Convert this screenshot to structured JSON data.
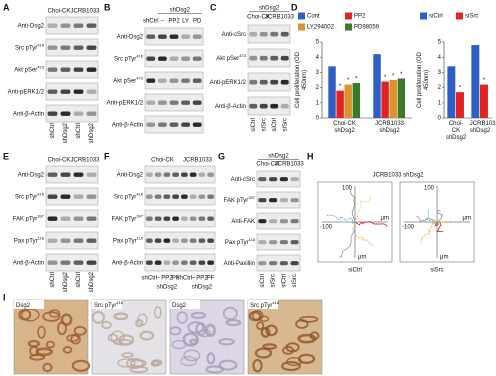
{
  "blots": [
    {
      "letter": "A",
      "header": [
        "Choi-CK",
        "JCRB1033"
      ],
      "rows": [
        {
          "label": "Anti-Dsg2"
        },
        {
          "label": "Src pTyr",
          "sup": "416"
        },
        {
          "label": "Akt pSer",
          "sup": "473"
        },
        {
          "label": "Anti-pERK1/2"
        },
        {
          "label": "Anti-β-Actin"
        }
      ],
      "lanes": [
        "shCtrl",
        "shDsg2",
        "shCtrl",
        "shDsg2"
      ]
    },
    {
      "letter": "B",
      "group_top": "shDsg2",
      "rows": [
        {
          "label": "Anti-Dsg2"
        },
        {
          "label": "Src pTyr",
          "sup": "416"
        },
        {
          "label": "Akt pSer",
          "sup": "473"
        },
        {
          "label": "Anti-pERK1/2"
        },
        {
          "label": "Anti-β-Actin"
        }
      ],
      "lanes": [
        "shCtrl",
        "–",
        "PP2",
        "LY",
        "PD"
      ]
    },
    {
      "letter": "C",
      "group_top": "shDsg2",
      "header": [
        "Choi-CK",
        "JCRB1033"
      ],
      "rows": [
        {
          "label": "Anti-cSrc"
        },
        {
          "label": "Akt pSer",
          "sup": "473"
        },
        {
          "label": "Anti-pERK1/2"
        },
        {
          "label": "Anti-β-Actin"
        }
      ],
      "lanes": [
        "siCtrl",
        "siSrc",
        "siCtrl",
        "siSrc"
      ]
    },
    {
      "letter": "E",
      "header": [
        "Choi-CK",
        "JCRB1033"
      ],
      "rows": [
        {
          "label": "Anti-Dsg2"
        },
        {
          "label": "Src pTyr",
          "sup": "416"
        },
        {
          "label": "FAK pTyr",
          "sup": "397"
        },
        {
          "label": "Pax pTyr",
          "sup": "118"
        },
        {
          "label": "Anti-β-Actin"
        }
      ],
      "lanes": [
        "shCtrl",
        "shDsg2",
        "shCtrl",
        "shDsg2"
      ]
    },
    {
      "letter": "F",
      "header": [
        "Choi-CK",
        "JCRB1033"
      ],
      "rows": [
        {
          "label": "Anti-Dsg2"
        },
        {
          "label": "Src pTyr",
          "sup": "416"
        },
        {
          "label": "FAK pTyr",
          "sup": "397"
        },
        {
          "label": "Pax pTyr",
          "sup": "118"
        },
        {
          "label": "Anti-β-Actin"
        }
      ],
      "lanes": [
        "shCtrl",
        "–",
        "PP2",
        "PF",
        "shCtrl",
        "–",
        "PP2",
        "PF"
      ],
      "lane_groups": [
        "shDsg2",
        "shDsg2"
      ]
    },
    {
      "letter": "G",
      "group_top": "shDsg2",
      "header": [
        "Choi-CK",
        "JCRB1033"
      ],
      "rows": [
        {
          "label": "Anti-cSrc"
        },
        {
          "label": "FAK pTyr",
          "sup": "397"
        },
        {
          "label": "Anti-FAK"
        },
        {
          "label": "Pax pTyr",
          "sup": "118"
        },
        {
          "label": "Anti-Paxillin"
        }
      ],
      "lanes": [
        "siCtrl",
        "siSrc",
        "siCtrl",
        "siSrc"
      ]
    }
  ],
  "chart_data": [
    {
      "type": "bar",
      "panel": "D",
      "y_label": "Cell proliferation (OD 450nm)",
      "categories": [
        "Choi-CK shDsg2",
        "JCRB1033 shDsg2"
      ],
      "series": [
        {
          "name": "Cont",
          "color": "#2f5fc4",
          "values": [
            3.4,
            4.2
          ],
          "significance": [
            null,
            null
          ]
        },
        {
          "name": "PP2",
          "color": "#e02424",
          "values": [
            1.8,
            2.4
          ],
          "significance": [
            "*",
            "*"
          ]
        },
        {
          "name": "LY294002",
          "color": "#e0922c",
          "values": [
            2.2,
            2.5
          ],
          "significance": [
            "*",
            "*"
          ]
        },
        {
          "name": "PD98059",
          "color": "#3b7a2b",
          "values": [
            2.3,
            2.6
          ],
          "significance": [
            "*",
            "*"
          ]
        }
      ],
      "ylim": [
        0,
        5
      ],
      "yticks": [
        0,
        1,
        2,
        3,
        4,
        5
      ],
      "grid": false
    },
    {
      "type": "bar",
      "y_label": "Cell proliferation (OD 450nm)",
      "categories": [
        "Choi-CK shDsg2",
        "JCRB1033 shDsg2"
      ],
      "series": [
        {
          "name": "siCtrl",
          "color": "#2f5fc4",
          "values": [
            3.4,
            4.8
          ],
          "significance": [
            null,
            null
          ]
        },
        {
          "name": "siSrc",
          "color": "#e02424",
          "values": [
            1.7,
            2.2
          ],
          "significance": [
            "*",
            "*"
          ]
        }
      ],
      "ylim": [
        0,
        5
      ],
      "yticks": [
        0,
        1,
        2,
        3,
        4,
        5
      ],
      "grid": false
    }
  ],
  "migration": {
    "letter": "H",
    "title": "JCRB1033 shDsg2",
    "plots": [
      {
        "label": "siCtrl"
      },
      {
        "label": "siSrc"
      }
    ],
    "axis_top": "100",
    "axis_left": "-100",
    "unit": "μm"
  },
  "ihc": {
    "letter": "I",
    "images": [
      {
        "label": "Dsg2"
      },
      {
        "label": "Src pTyr",
        "sup": "416"
      },
      {
        "label": "Dsg2"
      },
      {
        "label": "Src pTyr",
        "sup": "416"
      }
    ]
  }
}
